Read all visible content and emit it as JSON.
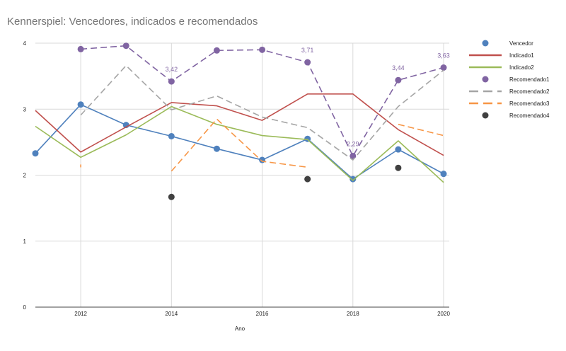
{
  "chart_data": {
    "type": "line",
    "title": "Kennerspiel: Vencedores, indicados e recomendados",
    "xlabel": "Ano",
    "ylabel": "",
    "xlim": [
      2011,
      2020
    ],
    "ylim": [
      0,
      4
    ],
    "grid": true,
    "legend_position": "right",
    "x_ticks": [
      2012,
      2014,
      2016,
      2018,
      2020
    ],
    "y_ticks": [
      0,
      1,
      2,
      3,
      4
    ],
    "series": [
      {
        "name": "Vencedor",
        "style": "line+marker",
        "color": "#4f81bd",
        "x": [
          2011,
          2012,
          2013,
          2014,
          2015,
          2016,
          2017,
          2018,
          2019,
          2020
        ],
        "values": [
          2.33,
          3.07,
          2.76,
          2.59,
          2.4,
          2.23,
          2.55,
          1.94,
          2.39,
          2.02
        ]
      },
      {
        "name": "Indicado1",
        "style": "line",
        "color": "#c0504d",
        "x": [
          2011,
          2012,
          2013,
          2014,
          2015,
          2016,
          2017,
          2018,
          2019,
          2020
        ],
        "values": [
          2.98,
          2.35,
          2.73,
          3.1,
          3.05,
          2.83,
          3.23,
          3.23,
          2.69,
          2.3
        ]
      },
      {
        "name": "Indicado2",
        "style": "line",
        "color": "#9bbb59",
        "x": [
          2011,
          2012,
          2013,
          2014,
          2015,
          2016,
          2017,
          2018,
          2019,
          2020
        ],
        "values": [
          2.74,
          2.27,
          2.61,
          3.04,
          2.77,
          2.6,
          2.54,
          1.92,
          2.52,
          1.89
        ]
      },
      {
        "name": "Recomendado1",
        "style": "dashed+marker",
        "color": "#8064a2",
        "x": [
          2012,
          2013,
          2014,
          2015,
          2016,
          2017,
          2018,
          2019,
          2020
        ],
        "values": [
          3.91,
          3.96,
          3.42,
          3.89,
          3.9,
          3.71,
          2.29,
          3.44,
          3.63
        ]
      },
      {
        "name": "Recomendado2",
        "style": "dashed",
        "color": "#a5a5a5",
        "x": [
          2012,
          2013,
          2014,
          2015,
          2016,
          2017,
          2018,
          2019,
          2020
        ],
        "values": [
          2.91,
          3.66,
          2.99,
          3.2,
          2.88,
          2.72,
          2.23,
          3.04,
          3.59
        ]
      },
      {
        "name": "Recomendado3",
        "style": "dashed",
        "color": "#f79646",
        "x": [
          2012,
          2014,
          2015,
          2016,
          2017,
          2019,
          2020
        ],
        "values": [
          2.14,
          2.06,
          2.85,
          2.21,
          2.12,
          2.77,
          2.6
        ],
        "segments": [
          [
            2012
          ],
          [
            2014,
            2015,
            2016,
            2017
          ],
          [
            2019,
            2020
          ]
        ]
      },
      {
        "name": "Recomendado4",
        "style": "marker",
        "color": "#404040",
        "x": [
          2014,
          2017,
          2019
        ],
        "values": [
          1.67,
          1.94,
          2.11
        ]
      }
    ],
    "annotations": [
      {
        "series": "Recomendado1",
        "x": 2014,
        "label": "3,42"
      },
      {
        "series": "Recomendado1",
        "x": 2017,
        "label": "3,71"
      },
      {
        "series": "Recomendado1",
        "x": 2018,
        "label": "2,29"
      },
      {
        "series": "Recomendado1",
        "x": 2019,
        "label": "3,44"
      },
      {
        "series": "Recomendado1",
        "x": 2020,
        "label": "3,63"
      }
    ]
  }
}
